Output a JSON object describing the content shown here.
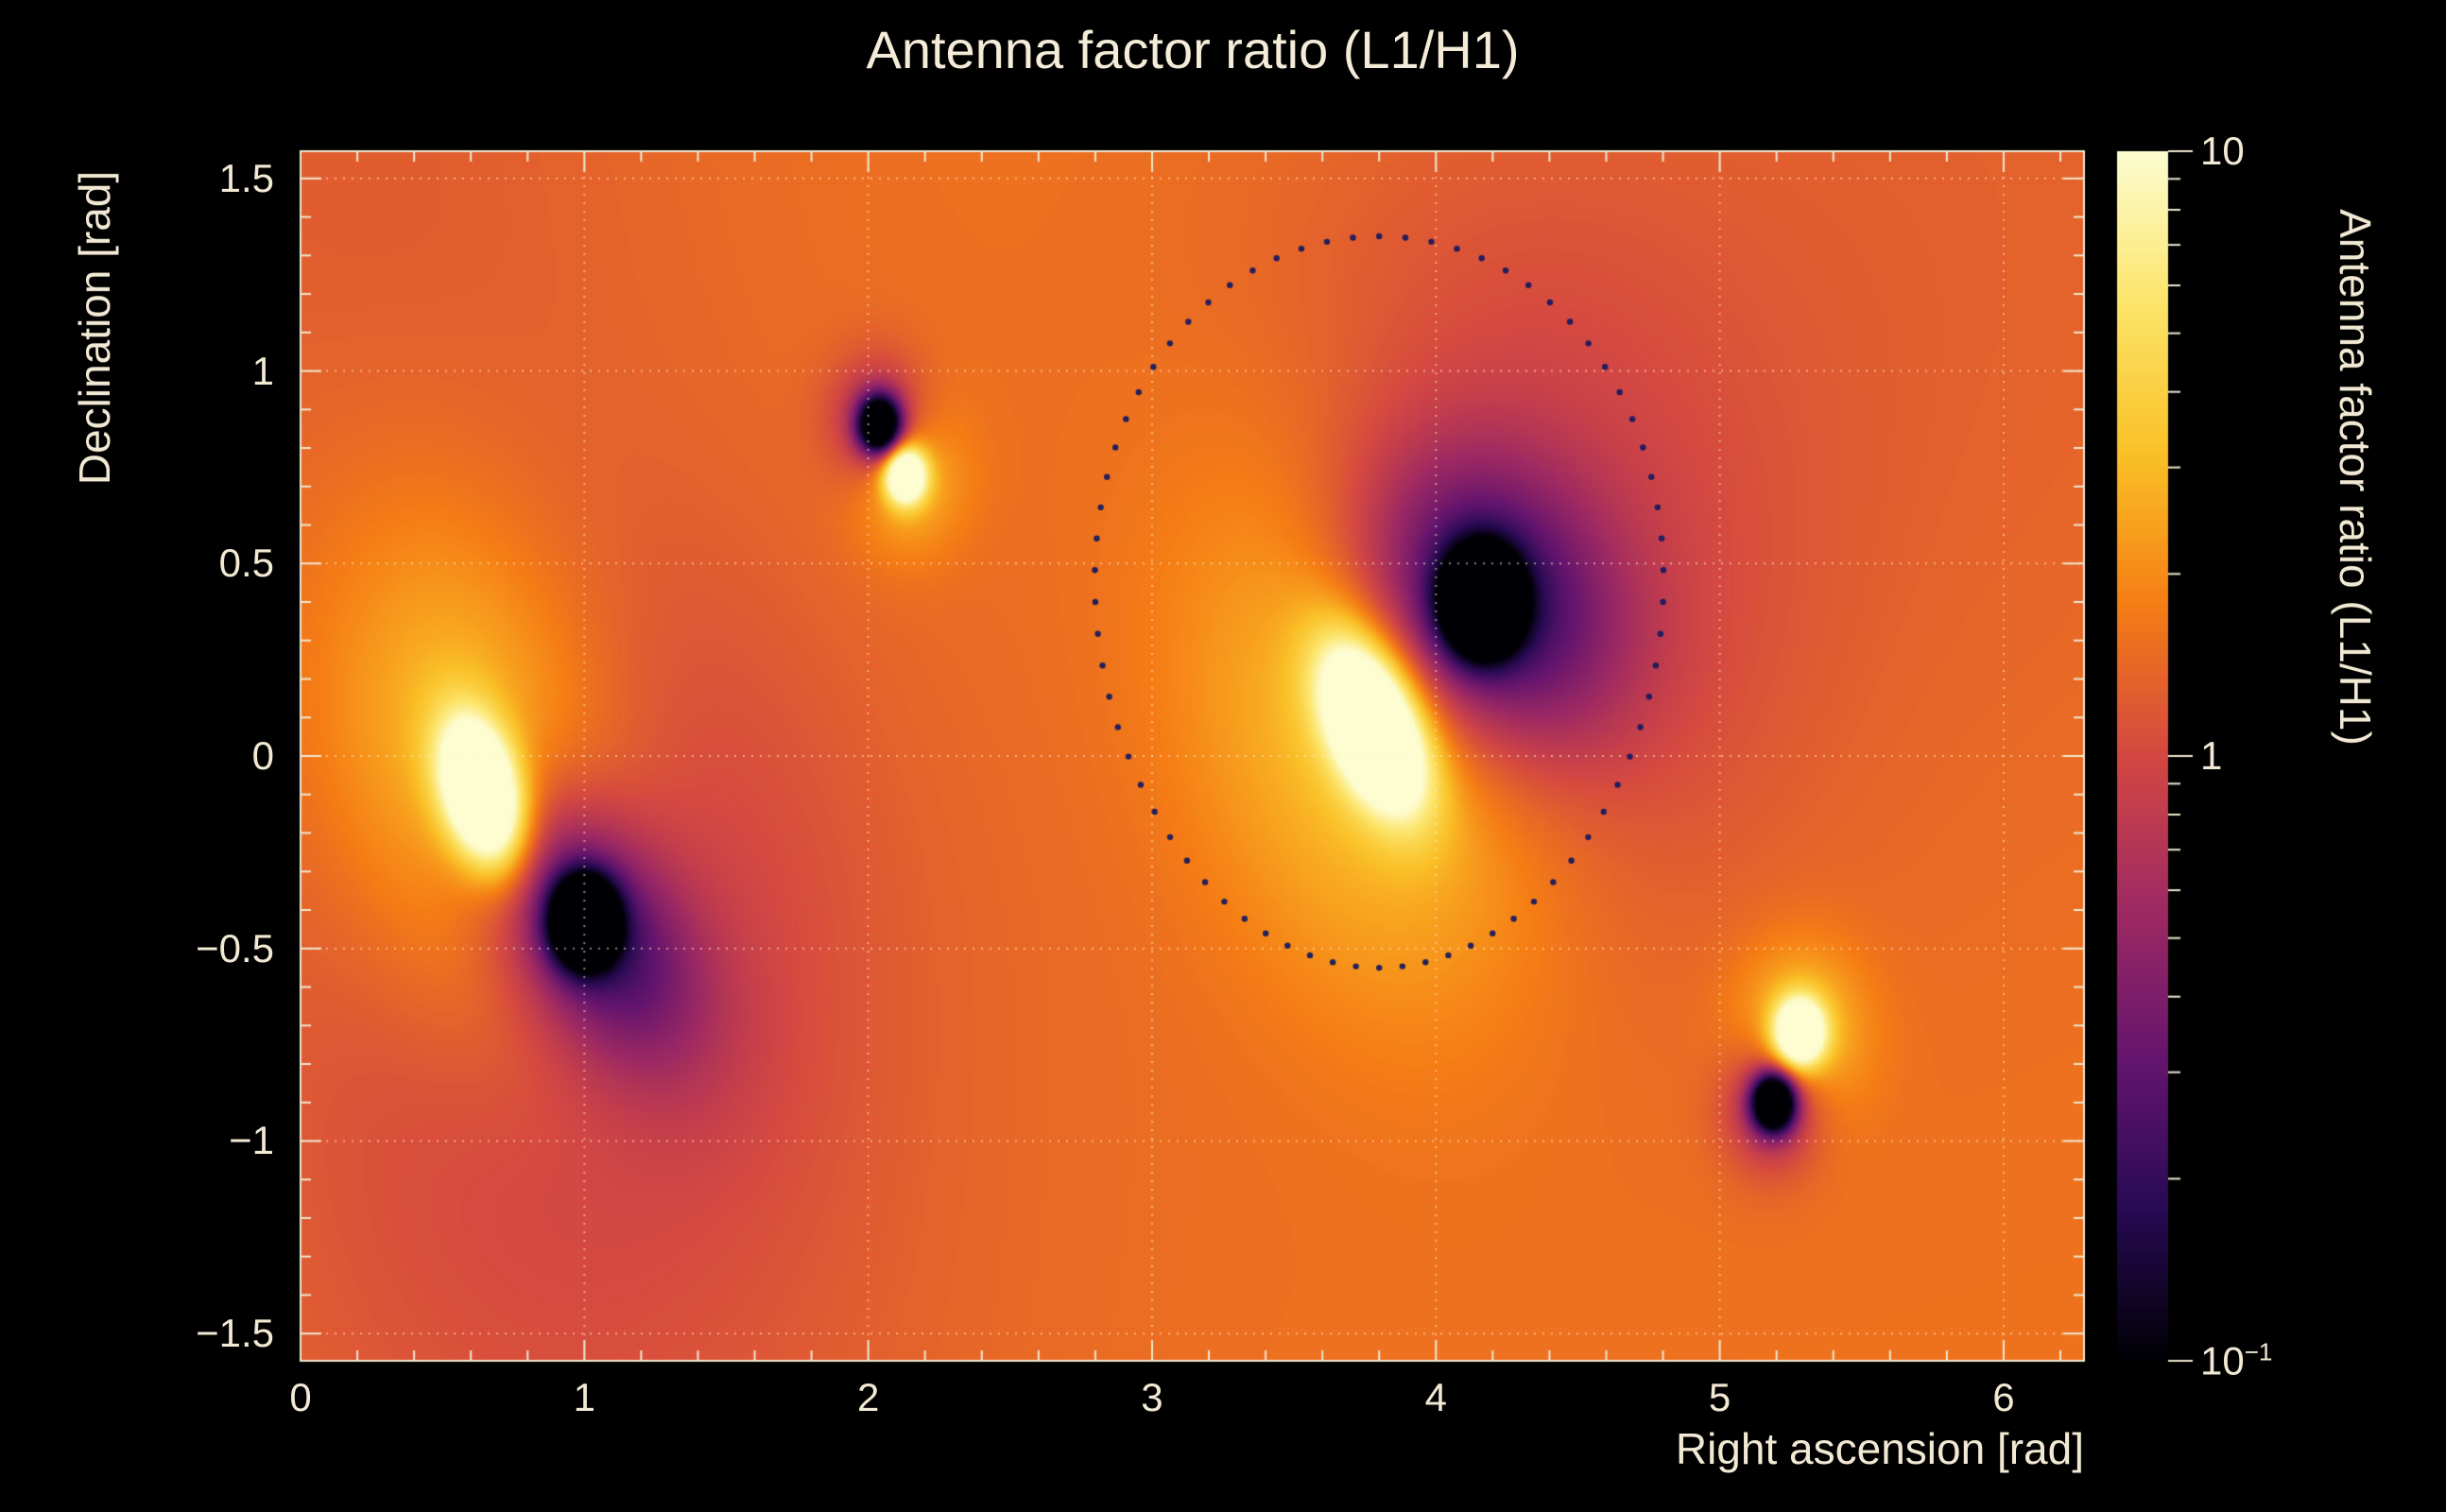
{
  "colors": {
    "background": "#000000",
    "text": "#f2e9d4",
    "grid": "#ffeecd",
    "frame": "#f0e7d0"
  },
  "chart_data": {
    "type": "heatmap",
    "title": "Antenna factor ratio (L1/H1)",
    "base_log10": 0.2,
    "x_axis": {
      "label": "Right ascension [rad]",
      "min": 0,
      "max": 6.2832,
      "minor_step": 0.2,
      "ticks": [
        {
          "label": "0",
          "value": 0
        },
        {
          "label": "1",
          "value": 1
        },
        {
          "label": "2",
          "value": 2
        },
        {
          "label": "3",
          "value": 3
        },
        {
          "label": "4",
          "value": 4
        },
        {
          "label": "5",
          "value": 5
        },
        {
          "label": "6",
          "value": 6
        }
      ]
    },
    "y_axis": {
      "label": "Declination [rad]",
      "min": -1.5708,
      "max": 1.5708,
      "minor_step": 0.1,
      "ticks": [
        {
          "label": "1.5",
          "value": 1.5
        },
        {
          "label": "1",
          "value": 1.0
        },
        {
          "label": "0.5",
          "value": 0.5
        },
        {
          "label": "0",
          "value": 0.0
        },
        {
          "label": "−0.5",
          "value": -0.5
        },
        {
          "label": "−1",
          "value": -1.0
        },
        {
          "label": "−1.5",
          "value": -1.5
        }
      ]
    },
    "colorbar": {
      "label": "Antenna factor ratio (L1/H1)",
      "min": 0.1,
      "max": 10,
      "scale": "log",
      "ticks": [
        {
          "label": "10",
          "sup": "",
          "value": 10
        },
        {
          "label": "1",
          "sup": "",
          "value": 1
        },
        {
          "label": "10",
          "sup": "−1",
          "value": 0.1
        }
      ]
    },
    "colormap_stops": [
      [
        0.0,
        [
          0,
          0,
          4
        ]
      ],
      [
        0.125,
        [
          40,
          11,
          84
        ]
      ],
      [
        0.25,
        [
          101,
          21,
          110
        ]
      ],
      [
        0.375,
        [
          159,
          42,
          99
        ]
      ],
      [
        0.5,
        [
          212,
          72,
          66
        ]
      ],
      [
        0.625,
        [
          245,
          125,
          21
        ]
      ],
      [
        0.75,
        [
          250,
          193,
          39
        ]
      ],
      [
        0.875,
        [
          252,
          229,
          106
        ]
      ],
      [
        1.0,
        [
          253,
          253,
          209
        ]
      ]
    ],
    "features": [
      {
        "name": "peak-A",
        "kind": "maximum",
        "ra": 0.64,
        "dec": -0.1,
        "approx_ratio": 10,
        "components": [
          {
            "a": 1.7,
            "sx": 0.09,
            "sy": 0.14,
            "rot": 25
          },
          {
            "a": 0.55,
            "sx": 0.35,
            "sy": 0.5,
            "rot": 25
          }
        ]
      },
      {
        "name": "null-A",
        "kind": "minimum",
        "ra": 1.0,
        "dec": -0.43,
        "approx_ratio": 0.1,
        "components": [
          {
            "a": -2.2,
            "sx": 0.075,
            "sy": 0.075,
            "rot": 0
          },
          {
            "a": -0.85,
            "sx": 0.3,
            "sy": 0.18,
            "rot": -40
          },
          {
            "a": -0.25,
            "sx": 0.65,
            "sy": 0.65,
            "rot": 0
          }
        ]
      },
      {
        "name": "null-B",
        "kind": "minimum",
        "ra": 2.04,
        "dec": 0.86,
        "approx_ratio": 0.1,
        "components": [
          {
            "a": -1.8,
            "sx": 0.05,
            "sy": 0.05,
            "rot": 0
          },
          {
            "a": -0.5,
            "sx": 0.12,
            "sy": 0.12,
            "rot": 0
          }
        ]
      },
      {
        "name": "peak-B",
        "kind": "maximum",
        "ra": 2.13,
        "dec": 0.73,
        "approx_ratio": 10,
        "components": [
          {
            "a": 1.5,
            "sx": 0.05,
            "sy": 0.05,
            "rot": 0
          },
          {
            "a": 0.35,
            "sx": 0.14,
            "sy": 0.14,
            "rot": 0
          }
        ]
      },
      {
        "name": "peak-C",
        "kind": "maximum",
        "ra": 3.78,
        "dec": 0.08,
        "approx_ratio": 10,
        "components": [
          {
            "a": 1.7,
            "sx": 0.1,
            "sy": 0.17,
            "rot": 35
          },
          {
            "a": 0.55,
            "sx": 0.42,
            "sy": 0.55,
            "rot": 35
          }
        ]
      },
      {
        "name": "null-C",
        "kind": "minimum",
        "ra": 4.16,
        "dec": 0.4,
        "approx_ratio": 0.1,
        "components": [
          {
            "a": -2.2,
            "sx": 0.09,
            "sy": 0.09,
            "rot": 0
          },
          {
            "a": -0.9,
            "sx": 0.32,
            "sy": 0.24,
            "rot": -25
          },
          {
            "a": -0.3,
            "sx": 0.7,
            "sy": 0.7,
            "rot": 0
          }
        ]
      },
      {
        "name": "peak-D",
        "kind": "maximum",
        "ra": 5.28,
        "dec": -0.72,
        "approx_ratio": 10,
        "components": [
          {
            "a": 1.5,
            "sx": 0.06,
            "sy": 0.06,
            "rot": 0
          },
          {
            "a": 0.4,
            "sx": 0.16,
            "sy": 0.16,
            "rot": 0
          }
        ]
      },
      {
        "name": "null-D",
        "kind": "minimum",
        "ra": 5.19,
        "dec": -0.9,
        "approx_ratio": 0.1,
        "components": [
          {
            "a": -1.9,
            "sx": 0.05,
            "sy": 0.05,
            "rot": 0
          },
          {
            "a": -0.55,
            "sx": 0.12,
            "sy": 0.12,
            "rot": 0
          }
        ]
      }
    ],
    "background_modulations": [
      {
        "ra": 0.9,
        "dec": -1.5,
        "a": -0.12,
        "s": 1.1
      },
      {
        "ra": 0.2,
        "dec": 1.5,
        "a": -0.1,
        "s": 0.9
      },
      {
        "ra": 5.8,
        "dec": 1.4,
        "a": -0.08,
        "s": 1.1
      }
    ],
    "contour": {
      "type": "dotted-loop",
      "center_ra": 3.8,
      "center_dec": 0.4,
      "rx": 1.0,
      "ry": 0.95,
      "egg": 0.06,
      "n_dots": 72,
      "dot_radius": 3.2,
      "color": "#1a1a5e"
    }
  }
}
